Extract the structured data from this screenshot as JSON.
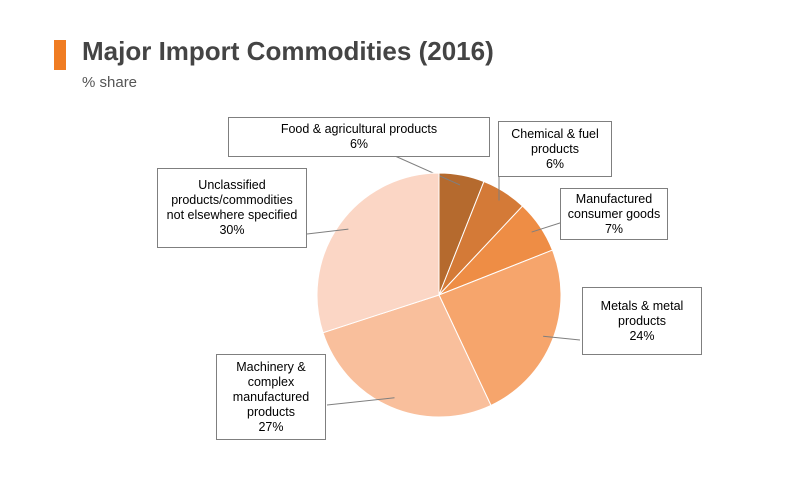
{
  "header": {
    "title": "Major Import Commodities (2016)",
    "subtitle": "% share"
  },
  "colors": {
    "accent": "#f07c22",
    "slices": [
      "#b56a2e",
      "#d47a37",
      "#ee8d45",
      "#f6a56c",
      "#f9bf9c",
      "#fbd6c5"
    ]
  },
  "chart_data": {
    "type": "pie",
    "title": "Major Import Commodities (2016)",
    "subtitle": "% share",
    "start_angle_deg": 0,
    "direction": "clockwise",
    "slices": [
      {
        "name": "Food & agricultural products",
        "value": 6,
        "label": "6%"
      },
      {
        "name": "Chemical & fuel products",
        "value": 6,
        "label": "6%"
      },
      {
        "name": "Manufactured consumer goods",
        "value": 7,
        "label": "7%"
      },
      {
        "name": "Metals & metal products",
        "value": 24,
        "label": "24%"
      },
      {
        "name": "Machinery & complex manufactured products",
        "value": 27,
        "label": "27%"
      },
      {
        "name": "Unclassified products/commodities not elsewhere specified",
        "value": 30,
        "label": "30%"
      }
    ],
    "legend": "none",
    "data_labels": "callouts"
  }
}
